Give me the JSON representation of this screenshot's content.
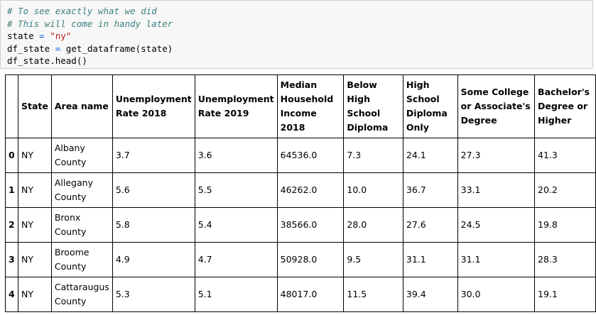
{
  "code_cell": {
    "lines": [
      {
        "comment": "# To see exactly what we did"
      },
      {
        "comment": "# This will come in handy later"
      },
      {
        "var": "state",
        "op": " = ",
        "string": "\"ny\""
      },
      {
        "var": "df_state",
        "op": " = ",
        "rest": "get_dataframe(state)"
      },
      {
        "plain": "df_state.head()"
      }
    ]
  },
  "dataframe": {
    "columns": [
      "",
      "State",
      "Area name",
      "Unemployment Rate 2018",
      "Unemployment Rate 2019",
      "Median Household Income 2018",
      "Below High School Diploma",
      "High School Diploma Only",
      "Some College or Associate's Degree",
      "Bachelor's Degree or Higher"
    ],
    "rows": [
      {
        "index": "0",
        "cells": [
          "NY",
          "Albany County",
          "3.7",
          "3.6",
          "64536.0",
          "7.3",
          "24.1",
          "27.3",
          "41.3"
        ]
      },
      {
        "index": "1",
        "cells": [
          "NY",
          "Allegany County",
          "5.6",
          "5.5",
          "46262.0",
          "10.0",
          "36.7",
          "33.1",
          "20.2"
        ]
      },
      {
        "index": "2",
        "cells": [
          "NY",
          "Bronx County",
          "5.8",
          "5.4",
          "38566.0",
          "28.0",
          "27.6",
          "24.5",
          "19.8"
        ]
      },
      {
        "index": "3",
        "cells": [
          "NY",
          "Broome County",
          "4.9",
          "4.7",
          "50928.0",
          "9.5",
          "31.1",
          "31.1",
          "28.3"
        ]
      },
      {
        "index": "4",
        "cells": [
          "NY",
          "Cattaraugus County",
          "5.3",
          "5.1",
          "48017.0",
          "11.5",
          "39.4",
          "30.0",
          "19.1"
        ]
      }
    ]
  }
}
